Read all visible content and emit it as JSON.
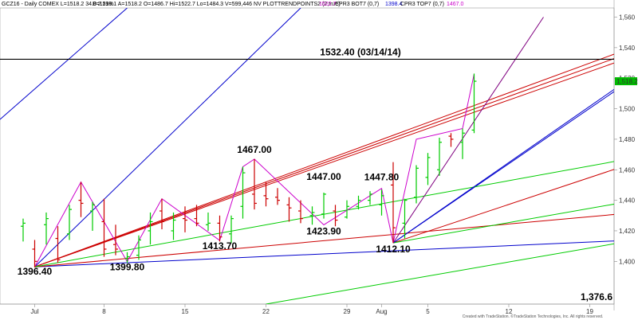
{
  "header": {
    "title": "GCZ16 - Daily  COMEX  L=1518.2  34.0  2.29%",
    "ohlc": "B=1518.1  A=1518.2  O=1486.7  Hi=1522.7  Lo=1484.3  V=599,446  NV  PLOTTRENDPOINTS2 (2,true)",
    "ind1": "1522.7",
    "ind2": "CPR3 BOT7 (0,7)",
    "ind3": "1398.4",
    "ind4": "CPR3 TOP7 (0,7)",
    "ind5": "1467.0"
  },
  "credit": "Created with TradeStation. ©TradeStation Technologies, Inc. All rights reserved.",
  "colors": {
    "bullish": "#00cc00",
    "bearish": "#cc0000",
    "swing": "#cc00cc",
    "gann_blue": "#0000cc",
    "gann_red": "#cc0000",
    "gann_green": "#00cc00",
    "gann_purple": "#800080",
    "resistance": "#000000",
    "last_price_bg": "#00bb00"
  },
  "chart_data": {
    "type": "candlestick",
    "x_ticks": [
      {
        "label": "Jul",
        "day": 2
      },
      {
        "label": "8",
        "day": 8
      },
      {
        "label": "15",
        "day": 15
      },
      {
        "label": "22",
        "day": 22
      },
      {
        "label": "29",
        "day": 29
      },
      {
        "label": "Aug",
        "day": 32
      },
      {
        "label": "5",
        "day": 36
      },
      {
        "label": "12",
        "day": 43
      },
      {
        "label": "19",
        "day": 50
      }
    ],
    "y_ticks": [
      1400,
      1420,
      1440,
      1460,
      1480,
      1500,
      1520,
      1540,
      1560
    ],
    "y_tick_labels": [
      "1,400",
      "1,420",
      "1,440",
      "1,460",
      "1,480",
      "1,500",
      "1,520",
      "1,540",
      "1,560"
    ],
    "xlim": [
      1,
      54
    ],
    "ylim": [
      1372,
      1566
    ],
    "last_price": "1,518.2",
    "bars": [
      {
        "d": 1,
        "o": 1423,
        "h": 1428,
        "l": 1413,
        "c": 1425
      },
      {
        "d": 2,
        "o": 1408,
        "h": 1414,
        "l": 1396,
        "c": 1400
      },
      {
        "d": 3,
        "o": 1424,
        "h": 1432,
        "l": 1411,
        "c": 1428
      },
      {
        "d": 4,
        "o": 1415,
        "h": 1423,
        "l": 1399,
        "c": 1401
      },
      {
        "d": 5,
        "o": 1418,
        "h": 1437,
        "l": 1414,
        "c": 1434
      },
      {
        "d": 6,
        "o": 1440,
        "h": 1452,
        "l": 1429,
        "c": 1438
      },
      {
        "d": 7,
        "o": 1433,
        "h": 1439,
        "l": 1420,
        "c": 1437
      },
      {
        "d": 8,
        "o": 1426,
        "h": 1441,
        "l": 1403,
        "c": 1408
      },
      {
        "d": 9,
        "o": 1411,
        "h": 1424,
        "l": 1404,
        "c": 1408
      },
      {
        "d": 10,
        "o": 1402,
        "h": 1406,
        "l": 1399,
        "c": 1403
      },
      {
        "d": 11,
        "o": 1404,
        "h": 1417,
        "l": 1401,
        "c": 1414
      },
      {
        "d": 12,
        "o": 1420,
        "h": 1432,
        "l": 1411,
        "c": 1426
      },
      {
        "d": 13,
        "o": 1433,
        "h": 1441,
        "l": 1421,
        "c": 1426
      },
      {
        "d": 14,
        "o": 1420,
        "h": 1432,
        "l": 1414,
        "c": 1427
      },
      {
        "d": 15,
        "o": 1428,
        "h": 1436,
        "l": 1419,
        "c": 1427
      },
      {
        "d": 16,
        "o": 1428,
        "h": 1437,
        "l": 1423,
        "c": 1425
      },
      {
        "d": 17,
        "o": 1424,
        "h": 1432,
        "l": 1420,
        "c": 1425
      },
      {
        "d": 18,
        "o": 1425,
        "h": 1430,
        "l": 1413,
        "c": 1416
      },
      {
        "d": 19,
        "o": 1418,
        "h": 1430,
        "l": 1412,
        "c": 1428
      },
      {
        "d": 20,
        "o": 1436,
        "h": 1462,
        "l": 1428,
        "c": 1458
      },
      {
        "d": 21,
        "o": 1444,
        "h": 1467,
        "l": 1434,
        "c": 1438
      },
      {
        "d": 22,
        "o": 1443,
        "h": 1452,
        "l": 1436,
        "c": 1441
      },
      {
        "d": 23,
        "o": 1442,
        "h": 1448,
        "l": 1437,
        "c": 1440
      },
      {
        "d": 24,
        "o": 1437,
        "h": 1442,
        "l": 1426,
        "c": 1435
      },
      {
        "d": 25,
        "o": 1433,
        "h": 1440,
        "l": 1425,
        "c": 1428
      },
      {
        "d": 26,
        "o": 1430,
        "h": 1436,
        "l": 1424,
        "c": 1432
      },
      {
        "d": 27,
        "o": 1431,
        "h": 1445,
        "l": 1428,
        "c": 1444
      },
      {
        "d": 28,
        "o": 1433,
        "h": 1437,
        "l": 1423,
        "c": 1427
      },
      {
        "d": 29,
        "o": 1429,
        "h": 1440,
        "l": 1428,
        "c": 1436
      },
      {
        "d": 30,
        "o": 1436,
        "h": 1443,
        "l": 1434,
        "c": 1440
      },
      {
        "d": 31,
        "o": 1440,
        "h": 1446,
        "l": 1437,
        "c": 1444
      },
      {
        "d": 32,
        "o": 1437,
        "h": 1447,
        "l": 1430,
        "c": 1443
      },
      {
        "d": 33,
        "o": 1450,
        "h": 1465,
        "l": 1412,
        "c": 1422
      },
      {
        "d": 34,
        "o": 1425,
        "h": 1441,
        "l": 1415,
        "c": 1440
      },
      {
        "d": 35,
        "o": 1442,
        "h": 1463,
        "l": 1438,
        "c": 1461
      },
      {
        "d": 36,
        "o": 1455,
        "h": 1471,
        "l": 1450,
        "c": 1468
      },
      {
        "d": 37,
        "o": 1460,
        "h": 1481,
        "l": 1456,
        "c": 1478
      },
      {
        "d": 38,
        "o": 1482,
        "h": 1484,
        "l": 1475,
        "c": 1480
      },
      {
        "d": 39,
        "o": 1478,
        "h": 1487,
        "l": 1467,
        "c": 1484
      },
      {
        "d": 40,
        "o": 1486,
        "h": 1523,
        "l": 1484,
        "c": 1518
      }
    ],
    "swing_path": [
      [
        2,
        1396.4
      ],
      [
        6,
        1452
      ],
      [
        10,
        1399.8
      ],
      [
        13,
        1441
      ],
      [
        18,
        1413.7
      ],
      [
        20,
        1462
      ],
      [
        21,
        1467.0
      ],
      [
        27,
        1423.9
      ],
      [
        32,
        1447.8
      ],
      [
        33,
        1412.1
      ],
      [
        35,
        1480
      ],
      [
        39,
        1487
      ],
      [
        40,
        1522.7
      ]
    ],
    "swing_labels": [
      {
        "text": "1396.40",
        "d": 2,
        "p": 1396.4
      },
      {
        "text": "1399.80",
        "d": 10,
        "p": 1399.8
      },
      {
        "text": "1413.70",
        "d": 18,
        "p": 1413.7
      },
      {
        "text": "1467.00",
        "d": 21,
        "p": 1467.0
      },
      {
        "text": "1447.00",
        "d": 27,
        "p": 1447.0
      },
      {
        "text": "1423.90",
        "d": 27,
        "p": 1423.9
      },
      {
        "text": "1447.80",
        "d": 32,
        "p": 1447.8
      },
      {
        "text": "1412.10",
        "d": 33,
        "p": 1412.1
      }
    ],
    "resistance": {
      "label": "1532.40 (03/14/14)",
      "value": 1532.4
    },
    "bottom_label": "1,376.6",
    "bottom_value": 1376.6,
    "trendlines": [
      {
        "name": "gann-blue-1",
        "color": "blue",
        "from": [
          -1,
          1493
        ],
        "to": [
          10,
          1566
        ],
        "width": 1
      },
      {
        "name": "gann-blue-2",
        "color": "blue",
        "from": [
          2,
          1396.4
        ],
        "to": [
          25,
          1566
        ],
        "width": 1
      },
      {
        "name": "gann-blue-3",
        "color": "blue",
        "from": [
          33,
          1412.1
        ],
        "to": [
          54,
          1521
        ],
        "width": 1
      },
      {
        "name": "gann-navy-flat",
        "color": "blue",
        "from": [
          2,
          1396.4
        ],
        "to": [
          54,
          1414
        ],
        "width": 1
      },
      {
        "name": "gann-red-steep-1",
        "color": "red",
        "from": [
          2,
          1396.4
        ],
        "to": [
          54,
          1541
        ],
        "width": 1
      },
      {
        "name": "gann-red-steep-2",
        "color": "red",
        "from": [
          2,
          1396.4
        ],
        "to": [
          54,
          1538
        ],
        "width": 1
      },
      {
        "name": "gann-red-steep-3",
        "color": "red",
        "from": [
          2,
          1396.4
        ],
        "to": [
          54,
          1535
        ],
        "width": 1
      },
      {
        "name": "gann-red-flat",
        "color": "red",
        "from": [
          2,
          1396.4
        ],
        "to": [
          54,
          1432
        ],
        "width": 1
      },
      {
        "name": "gann-red-aug",
        "color": "red",
        "from": [
          33,
          1412.1
        ],
        "to": [
          54,
          1465
        ],
        "width": 1
      },
      {
        "name": "gann-green-1",
        "color": "green",
        "from": [
          2,
          1396.4
        ],
        "to": [
          54,
          1468
        ],
        "width": 1
      },
      {
        "name": "gann-green-2",
        "color": "green",
        "from": [
          33,
          1412.1
        ],
        "to": [
          54,
          1440
        ],
        "width": 1
      },
      {
        "name": "gann-green-3",
        "color": "green",
        "from": [
          22,
          1372
        ],
        "to": [
          54,
          1414
        ],
        "width": 1
      },
      {
        "name": "gann-purple",
        "color": "purple",
        "from": [
          33,
          1412.1
        ],
        "to": [
          46,
          1560
        ],
        "width": 1
      },
      {
        "name": "gann-navy-fan",
        "color": "blue",
        "from": [
          33,
          1412.1
        ],
        "to": [
          53.5,
          1520
        ],
        "width": 1
      }
    ]
  }
}
